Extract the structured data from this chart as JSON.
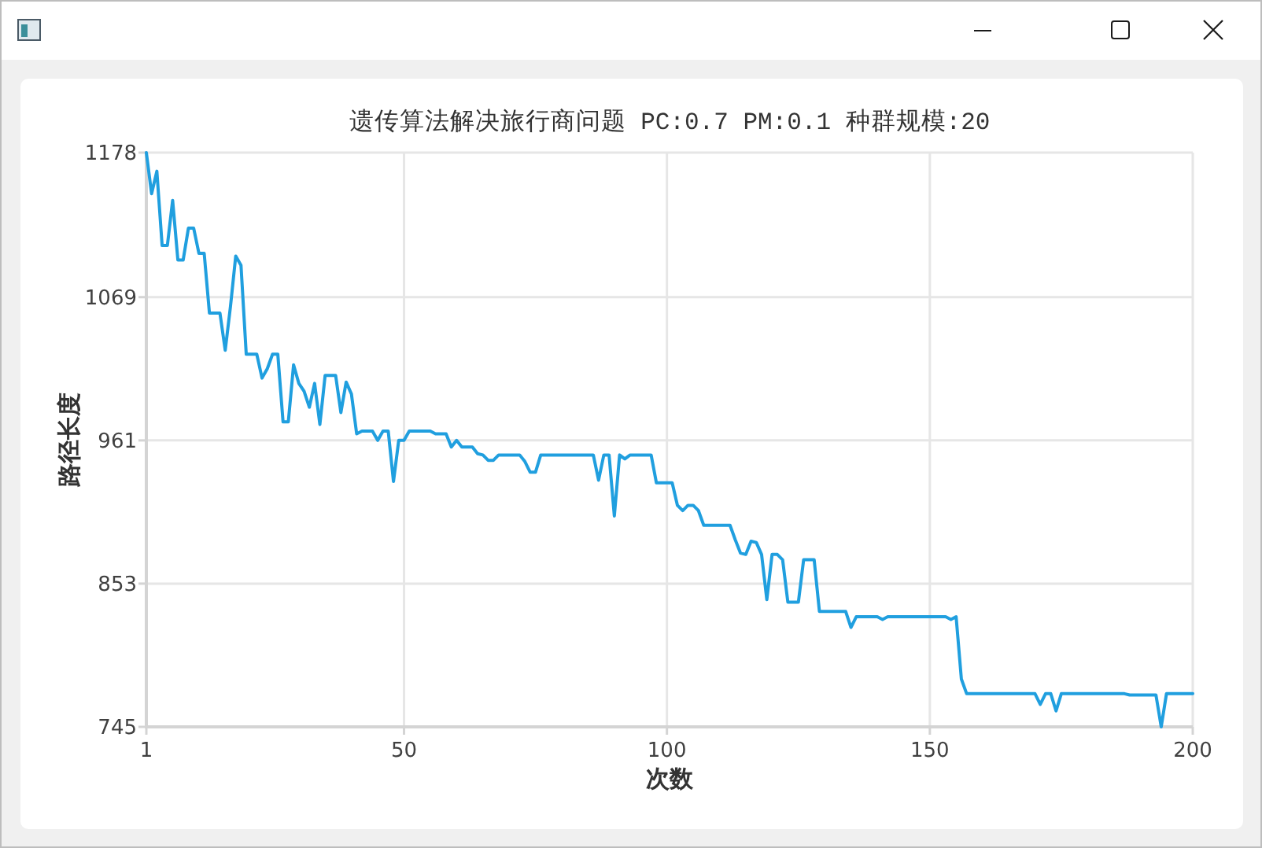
{
  "chart_data": {
    "type": "line",
    "title": "遗传算法解决旅行商问题 PC:0.7 PM:0.1 种群规模:20",
    "xlabel": "次数",
    "ylabel": "路径长度",
    "x": [
      1,
      2,
      3,
      4,
      5,
      6,
      7,
      8,
      9,
      10,
      11,
      12,
      13,
      15,
      16,
      17,
      18,
      19,
      20,
      22,
      23,
      24,
      25,
      26,
      27,
      28,
      29,
      30,
      31,
      32,
      33,
      34,
      35,
      37,
      38,
      39,
      40,
      41,
      42,
      44,
      45,
      46,
      47,
      48,
      49,
      50,
      51,
      55,
      56,
      58,
      59,
      60,
      61,
      63,
      64,
      65,
      66,
      67,
      68,
      72,
      73,
      74,
      75,
      76,
      86,
      87,
      88,
      89,
      90,
      91,
      92,
      93,
      97,
      98,
      101,
      102,
      103,
      104,
      105,
      106,
      107,
      112,
      113,
      114,
      115,
      116,
      117,
      118,
      119,
      120,
      121,
      122,
      123,
      125,
      126,
      128,
      129,
      131,
      132,
      134,
      135,
      136,
      140,
      141,
      142,
      153,
      154,
      155,
      156,
      157,
      170,
      171,
      172,
      173,
      174,
      175,
      187,
      188,
      193,
      194,
      195,
      200
    ],
    "series": [
      {
        "color": "#209fdf",
        "values": [
          1178,
          1147,
          1164,
          1108,
          1108,
          1142,
          1097,
          1097,
          1121,
          1121,
          1102,
          1102,
          1057,
          1057,
          1029,
          1062,
          1100,
          1093,
          1026,
          1026,
          1008,
          1015,
          1026,
          1026,
          975,
          975,
          1018,
          1004,
          998,
          986,
          1004,
          973,
          1010,
          1010,
          982,
          1005,
          996,
          966,
          968,
          968,
          961,
          968,
          968,
          930,
          961,
          961,
          968,
          968,
          966,
          966,
          956,
          961,
          956,
          956,
          951,
          950,
          946,
          946,
          950,
          950,
          945,
          937,
          937,
          950,
          950,
          931,
          950,
          950,
          904,
          950,
          947,
          950,
          950,
          929,
          929,
          912,
          908,
          912,
          912,
          908,
          897,
          897,
          886,
          876,
          875,
          885,
          884,
          875,
          841,
          875,
          875,
          871,
          839,
          839,
          871,
          871,
          832,
          832,
          832,
          832,
          820,
          828,
          828,
          826,
          828,
          828,
          826,
          828,
          781,
          770,
          770,
          762,
          770,
          770,
          757,
          770,
          770,
          769,
          769,
          745,
          770,
          770
        ]
      }
    ],
    "xlim": [
      1,
      200
    ],
    "ylim": [
      745,
      1178
    ],
    "xticks": [
      1,
      50,
      100,
      150,
      200
    ],
    "yticks": [
      745,
      853,
      961,
      1069,
      1178
    ],
    "grid": true,
    "line_style": "solid"
  }
}
